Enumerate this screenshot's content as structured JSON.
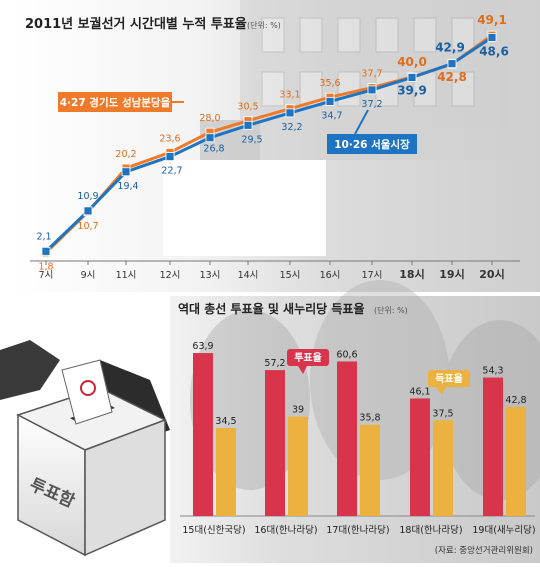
{
  "chart_data": [
    {
      "type": "line",
      "title": "2011년 보궐선거 시간대별 누적 투표율",
      "unit": "(단위: %)",
      "categories": [
        "7시",
        "9시",
        "11시",
        "12시",
        "13시",
        "14시",
        "15시",
        "16시",
        "17시",
        "18시",
        "19시",
        "20시"
      ],
      "ylim": [
        0,
        52
      ],
      "grid": false,
      "series": [
        {
          "name": "4·27 경기도 성남분당을",
          "color": "#ee7a2a",
          "values": [
            1.8,
            10.7,
            20.2,
            23.6,
            28.0,
            30.5,
            33.1,
            35.6,
            37.7,
            40.0,
            42.8,
            49.1
          ]
        },
        {
          "name": "10·26 서울시장",
          "color": "#1f74c2",
          "values": [
            2.1,
            10.9,
            19.4,
            22.7,
            26.8,
            29.5,
            32.2,
            34.7,
            37.2,
            39.9,
            42.9,
            48.6
          ]
        }
      ],
      "labels": {
        "orange": [
          "1,8",
          "10,7",
          "20,2",
          "23,6",
          "28,0",
          "30,5",
          "33,1",
          "35,6",
          "37,7",
          "40,0",
          "42,8",
          "49,1"
        ],
        "blue": [
          "2,1",
          "10,9",
          "19,4",
          "22,7",
          "26,8",
          "29,5",
          "32,2",
          "34,7",
          "37,2",
          "39,9",
          "42,9",
          "48,6"
        ]
      }
    },
    {
      "type": "bar",
      "title": "역대 총선 투표율 및 새누리당 득표율",
      "unit": "(단위: %)",
      "categories": [
        "15대(신한국당)",
        "16대(한나라당)",
        "17대(한나라당)",
        "18대(한나라당)",
        "19대(새누리당)"
      ],
      "ylim": [
        0,
        70
      ],
      "grid": false,
      "series": [
        {
          "name": "투표율",
          "color": "#d8344c",
          "values": [
            63.9,
            57.2,
            60.6,
            46.1,
            54.3
          ]
        },
        {
          "name": "득표율",
          "color": "#ecb23f",
          "values": [
            34.5,
            39,
            35.8,
            37.5,
            42.8
          ]
        }
      ],
      "labels": {
        "turnout": [
          "63,9",
          "57,2",
          "60,6",
          "46,1",
          "54,3"
        ],
        "vote": [
          "34,5",
          "39",
          "35,8",
          "37,5",
          "42,8"
        ]
      },
      "source": "(자료: 중앙선거관리위원회)"
    }
  ],
  "illustration": {
    "ballot_box_text": "투표함"
  }
}
